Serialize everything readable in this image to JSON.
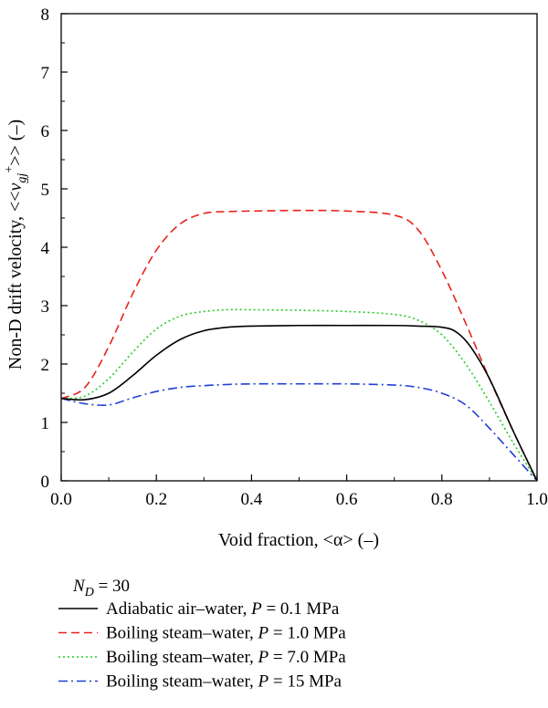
{
  "chart_data": {
    "type": "line",
    "xlabel": "Void fraction, <α> (–)",
    "ylabel": "Non-D drift velocity, <<vgj+>> (–)",
    "ylabel_parts": {
      "prefix": "Non-D drift velocity, <<",
      "v": "v",
      "sub": "gj",
      "sup": "+",
      "suffix": ">> (–)"
    },
    "xlim": [
      0,
      1
    ],
    "ylim": [
      0,
      8
    ],
    "x_ticks": [
      "0.0",
      "0.2",
      "0.4",
      "0.6",
      "0.8",
      "1.0"
    ],
    "y_ticks": [
      "0",
      "1",
      "2",
      "3",
      "4",
      "5",
      "6",
      "7",
      "8"
    ],
    "grid": false,
    "legend_position": "below",
    "legend_header": {
      "symbol": "N",
      "sub": "D",
      "text": " = 30"
    },
    "series": [
      {
        "name": "Adiabatic air–water, P = 0.1 MPa",
        "label_pre": "Adiabatic air–water, ",
        "label_post": " = 0.1 MPa",
        "color": "#000000",
        "dash": "",
        "x": [
          0,
          0.05,
          0.1,
          0.15,
          0.2,
          0.25,
          0.3,
          0.35,
          0.4,
          0.5,
          0.6,
          0.7,
          0.75,
          0.8,
          0.83,
          0.86,
          0.9,
          0.95,
          1.0
        ],
        "y": [
          1.41,
          1.39,
          1.5,
          1.8,
          2.15,
          2.42,
          2.57,
          2.63,
          2.65,
          2.66,
          2.66,
          2.66,
          2.65,
          2.63,
          2.55,
          2.3,
          1.75,
          0.85,
          0.0
        ]
      },
      {
        "name": "Boiling steam–water, P = 1.0 MPa",
        "label_pre": "Boiling steam–water, ",
        "label_post": " = 1.0 MPa",
        "color": "#e8231c",
        "dash": "9,5",
        "x": [
          0,
          0.05,
          0.1,
          0.15,
          0.2,
          0.25,
          0.3,
          0.35,
          0.4,
          0.5,
          0.6,
          0.7,
          0.75,
          0.8,
          0.85,
          0.9,
          0.95,
          1.0
        ],
        "y": [
          1.41,
          1.6,
          2.3,
          3.2,
          3.95,
          4.4,
          4.58,
          4.61,
          4.62,
          4.63,
          4.62,
          4.55,
          4.3,
          3.6,
          2.7,
          1.75,
          0.85,
          0.0
        ]
      },
      {
        "name": "Boiling steam–water, P = 7.0 MPa",
        "label_pre": "Boiling steam–water, ",
        "label_post": " = 7.0 MPa",
        "color": "#22cc22",
        "dash": "2,3",
        "x": [
          0,
          0.05,
          0.1,
          0.15,
          0.2,
          0.25,
          0.3,
          0.35,
          0.4,
          0.5,
          0.6,
          0.7,
          0.75,
          0.8,
          0.85,
          0.9,
          0.95,
          1.0
        ],
        "y": [
          1.41,
          1.45,
          1.75,
          2.2,
          2.6,
          2.82,
          2.9,
          2.93,
          2.93,
          2.92,
          2.9,
          2.85,
          2.75,
          2.5,
          2.0,
          1.35,
          0.65,
          0.0
        ]
      },
      {
        "name": "Boiling steam–water, P = 15 MPa",
        "label_pre": "Boiling steam–water, ",
        "label_post": " = 15 MPa",
        "color": "#1f3fd6",
        "dash": "10,4,2,4",
        "x": [
          0,
          0.05,
          0.1,
          0.15,
          0.2,
          0.25,
          0.3,
          0.35,
          0.4,
          0.5,
          0.6,
          0.7,
          0.75,
          0.8,
          0.85,
          0.9,
          0.95,
          1.0
        ],
        "y": [
          1.41,
          1.32,
          1.3,
          1.42,
          1.53,
          1.6,
          1.63,
          1.65,
          1.66,
          1.66,
          1.66,
          1.64,
          1.6,
          1.5,
          1.3,
          0.9,
          0.45,
          0.0
        ]
      }
    ]
  }
}
